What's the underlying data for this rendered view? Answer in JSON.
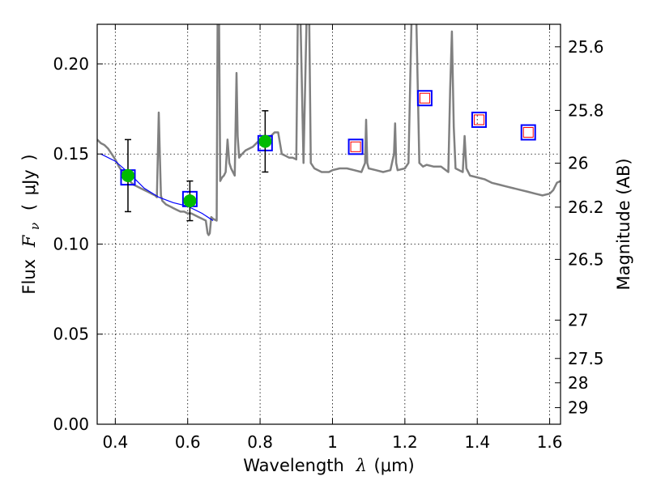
{
  "chart_data": {
    "type": "scatter",
    "title": "",
    "xlabel": "Wavelength λ (μm)",
    "xlabel_parts": {
      "prefix": "Wavelength",
      "symbol": "λ",
      "unit": "(μm)"
    },
    "ylabel": "Flux F_ν (μJy)",
    "ylabel_parts": {
      "prefix": "Flux",
      "symbol": "F",
      "subscript": "ν",
      "open": "(",
      "unit": "μJy",
      "close": ")"
    },
    "y2label": "Magnitude (AB)",
    "xlim": [
      0.35,
      1.63
    ],
    "ylim": [
      0.0,
      0.222
    ],
    "grid": true,
    "xticks": [
      0.4,
      0.6,
      0.8,
      1.0,
      1.2,
      1.4,
      1.6
    ],
    "xtick_labels": [
      "0.4",
      "0.6",
      "0.8",
      "1",
      "1.2",
      "1.4",
      "1.6"
    ],
    "yticks": [
      0.0,
      0.05,
      0.1,
      0.15,
      0.2
    ],
    "ytick_labels": [
      "0.00",
      "0.05",
      "0.10",
      "0.15",
      "0.20"
    ],
    "y2ticks": [
      {
        "flux": 0.2095,
        "label": "25.6"
      },
      {
        "flux": 0.1742,
        "label": "25.8"
      },
      {
        "flux": 0.1449,
        "label": "26"
      },
      {
        "flux": 0.1205,
        "label": "26.2"
      },
      {
        "flux": 0.0915,
        "label": "26.5"
      },
      {
        "flux": 0.0578,
        "label": "27"
      },
      {
        "flux": 0.0365,
        "label": "27.5"
      },
      {
        "flux": 0.023,
        "label": "28"
      },
      {
        "flux": 0.0092,
        "label": "29"
      }
    ],
    "colors": {
      "model": "#808080",
      "blue_line": "#0000ff",
      "photometry": "#00bb00",
      "model_box": "#0000ff",
      "upper_box": "#ff0000",
      "errorbar": "#000000",
      "grid": "#000000"
    },
    "series": [
      {
        "name": "model spectrum",
        "kind": "line",
        "x": [
          0.35,
          0.36,
          0.37,
          0.38,
          0.39,
          0.4,
          0.41,
          0.42,
          0.43,
          0.44,
          0.45,
          0.46,
          0.47,
          0.48,
          0.49,
          0.5,
          0.51,
          0.515,
          0.52,
          0.523,
          0.526,
          0.53,
          0.54,
          0.55,
          0.56,
          0.57,
          0.58,
          0.59,
          0.6,
          0.61,
          0.62,
          0.63,
          0.64,
          0.65,
          0.655,
          0.658,
          0.661,
          0.665,
          0.67,
          0.68,
          0.683,
          0.686,
          0.69,
          0.695,
          0.7,
          0.705,
          0.71,
          0.715,
          0.72,
          0.73,
          0.735,
          0.738,
          0.742,
          0.75,
          0.76,
          0.77,
          0.78,
          0.79,
          0.8,
          0.81,
          0.82,
          0.83,
          0.84,
          0.85,
          0.86,
          0.87,
          0.88,
          0.89,
          0.9,
          0.905,
          0.91,
          0.92,
          0.93,
          0.935,
          0.94,
          0.95,
          0.96,
          0.97,
          0.98,
          0.99,
          1.0,
          1.02,
          1.04,
          1.06,
          1.08,
          1.09,
          1.093,
          1.096,
          1.1,
          1.12,
          1.14,
          1.16,
          1.17,
          1.173,
          1.176,
          1.18,
          1.2,
          1.21,
          1.22,
          1.23,
          1.24,
          1.25,
          1.26,
          1.28,
          1.3,
          1.32,
          1.325,
          1.33,
          1.335,
          1.34,
          1.36,
          1.365,
          1.37,
          1.38,
          1.4,
          1.42,
          1.44,
          1.46,
          1.48,
          1.5,
          1.52,
          1.54,
          1.56,
          1.58,
          1.6,
          1.61,
          1.62,
          1.63
        ],
        "y": [
          0.158,
          0.156,
          0.155,
          0.153,
          0.15,
          0.147,
          0.143,
          0.14,
          0.137,
          0.135,
          0.133,
          0.132,
          0.131,
          0.13,
          0.129,
          0.128,
          0.127,
          0.126,
          0.173,
          0.15,
          0.127,
          0.124,
          0.122,
          0.121,
          0.12,
          0.119,
          0.118,
          0.118,
          0.117,
          0.117,
          0.116,
          0.115,
          0.114,
          0.113,
          0.106,
          0.105,
          0.106,
          0.115,
          0.114,
          0.113,
          0.24,
          0.24,
          0.135,
          0.137,
          0.138,
          0.14,
          0.158,
          0.145,
          0.142,
          0.138,
          0.195,
          0.16,
          0.148,
          0.15,
          0.152,
          0.153,
          0.154,
          0.156,
          0.158,
          0.16,
          0.157,
          0.16,
          0.162,
          0.162,
          0.15,
          0.149,
          0.148,
          0.148,
          0.147,
          0.24,
          0.24,
          0.145,
          0.24,
          0.24,
          0.145,
          0.142,
          0.141,
          0.14,
          0.14,
          0.14,
          0.141,
          0.142,
          0.142,
          0.141,
          0.14,
          0.145,
          0.169,
          0.145,
          0.142,
          0.141,
          0.14,
          0.141,
          0.15,
          0.167,
          0.145,
          0.141,
          0.142,
          0.145,
          0.24,
          0.24,
          0.145,
          0.143,
          0.144,
          0.143,
          0.143,
          0.14,
          0.185,
          0.218,
          0.165,
          0.142,
          0.14,
          0.16,
          0.142,
          0.138,
          0.137,
          0.136,
          0.134,
          0.133,
          0.132,
          0.131,
          0.13,
          0.129,
          0.128,
          0.127,
          0.128,
          0.13,
          0.134,
          0.135
        ]
      },
      {
        "name": "model fit (blue)",
        "kind": "line",
        "x": [
          0.36,
          0.4,
          0.44,
          0.48,
          0.52,
          0.56,
          0.6,
          0.64,
          0.67
        ],
        "y": [
          0.15,
          0.146,
          0.139,
          0.131,
          0.126,
          0.123,
          0.121,
          0.117,
          0.113
        ]
      },
      {
        "name": "model synthetic photometry",
        "kind": "open_square",
        "x": [
          0.435,
          0.606,
          0.814,
          1.064,
          1.255,
          1.405,
          1.541
        ],
        "y": [
          0.137,
          0.125,
          0.156,
          0.154,
          0.181,
          0.169,
          0.162
        ]
      },
      {
        "name": "upper limits",
        "kind": "open_square",
        "x": [
          1.064,
          1.255,
          1.405,
          1.541
        ],
        "y": [
          0.154,
          0.181,
          0.169,
          0.162
        ]
      },
      {
        "name": "observed photometry",
        "kind": "point_errorbar",
        "x": [
          0.435,
          0.606,
          0.814
        ],
        "y": [
          0.138,
          0.124,
          0.157
        ],
        "yerr": [
          0.02,
          0.011,
          0.017
        ]
      }
    ]
  }
}
